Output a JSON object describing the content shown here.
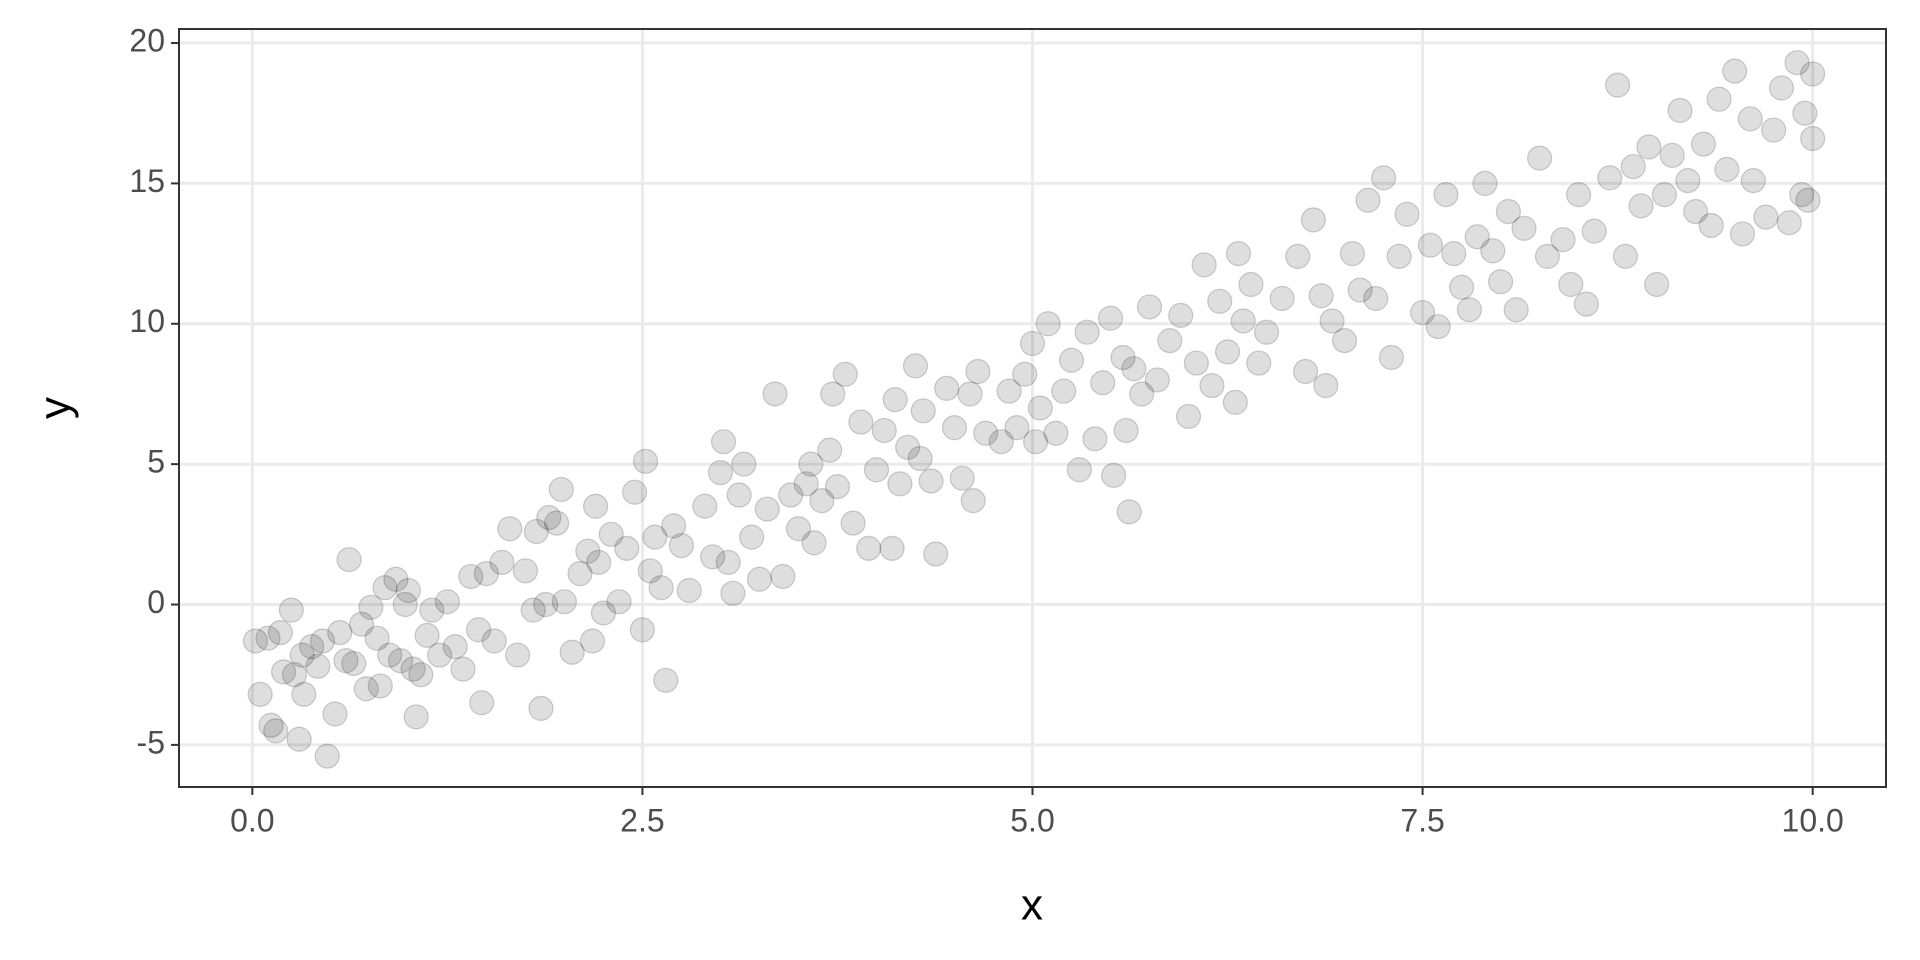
{
  "chart_data": {
    "type": "scatter",
    "x_label": "x",
    "y_label": "y",
    "color": "#000000",
    "alpha": 0.13,
    "grid": true,
    "xlim": [
      -0.47,
      10.47
    ],
    "ylim": [
      -6.5,
      20.5
    ],
    "xticks": [
      {
        "value": 0,
        "label": "0.0"
      },
      2.5,
      {
        "value": 5,
        "label": "5.0"
      },
      7.5,
      {
        "value": 10,
        "label": "10.0"
      }
    ],
    "yticks": [
      -5,
      0,
      5,
      10,
      15,
      20
    ],
    "x": [
      0.02,
      0.05,
      0.1,
      0.12,
      0.15,
      0.18,
      0.2,
      0.25,
      0.27,
      0.3,
      0.32,
      0.33,
      0.38,
      0.42,
      0.45,
      0.48,
      0.53,
      0.56,
      0.6,
      0.62,
      0.65,
      0.7,
      0.73,
      0.76,
      0.8,
      0.82,
      0.85,
      0.88,
      0.92,
      0.95,
      0.98,
      1.0,
      1.03,
      1.05,
      1.08,
      1.12,
      1.15,
      1.2,
      1.25,
      1.3,
      1.35,
      1.4,
      1.45,
      1.47,
      1.5,
      1.55,
      1.6,
      1.65,
      1.7,
      1.75,
      1.8,
      1.82,
      1.85,
      1.88,
      1.9,
      1.95,
      1.98,
      2.0,
      2.05,
      2.1,
      2.15,
      2.18,
      2.2,
      2.22,
      2.25,
      2.3,
      2.35,
      2.4,
      2.45,
      2.5,
      2.52,
      2.55,
      2.58,
      2.62,
      2.65,
      2.7,
      2.75,
      2.8,
      2.9,
      2.95,
      3.0,
      3.02,
      3.05,
      3.08,
      3.12,
      3.15,
      3.2,
      3.25,
      3.3,
      3.35,
      3.4,
      3.45,
      3.5,
      3.55,
      3.58,
      3.6,
      3.65,
      3.7,
      3.72,
      3.75,
      3.8,
      3.85,
      3.9,
      3.95,
      4.0,
      4.05,
      4.1,
      4.12,
      4.15,
      4.2,
      4.25,
      4.28,
      4.3,
      4.35,
      4.38,
      4.45,
      4.5,
      4.55,
      4.6,
      4.62,
      4.65,
      4.7,
      4.8,
      4.85,
      4.9,
      4.95,
      5.0,
      5.02,
      5.05,
      5.1,
      5.15,
      5.2,
      5.25,
      5.3,
      5.35,
      5.4,
      5.45,
      5.5,
      5.52,
      5.58,
      5.6,
      5.62,
      5.65,
      5.7,
      5.75,
      5.8,
      5.88,
      5.95,
      6.0,
      6.05,
      6.1,
      6.15,
      6.2,
      6.25,
      6.3,
      6.32,
      6.35,
      6.4,
      6.45,
      6.5,
      6.6,
      6.7,
      6.75,
      6.8,
      6.85,
      6.88,
      6.92,
      7.0,
      7.05,
      7.1,
      7.15,
      7.2,
      7.25,
      7.3,
      7.35,
      7.4,
      7.5,
      7.55,
      7.6,
      7.65,
      7.7,
      7.75,
      7.8,
      7.85,
      7.9,
      7.95,
      8.0,
      8.05,
      8.1,
      8.15,
      8.25,
      8.3,
      8.4,
      8.45,
      8.5,
      8.55,
      8.6,
      8.7,
      8.75,
      8.8,
      8.85,
      8.9,
      8.95,
      9.0,
      9.05,
      9.1,
      9.15,
      9.2,
      9.25,
      9.3,
      9.35,
      9.4,
      9.45,
      9.5,
      9.55,
      9.6,
      9.62,
      9.7,
      9.75,
      9.8,
      9.85,
      9.9,
      9.93,
      9.95,
      9.97,
      10.0,
      10.0
    ],
    "y": [
      -1.3,
      -3.2,
      -1.2,
      -4.3,
      -4.5,
      -1.0,
      -2.4,
      -0.2,
      -2.5,
      -4.8,
      -1.8,
      -3.2,
      -1.5,
      -2.2,
      -1.3,
      -5.4,
      -3.9,
      -1.0,
      -2.0,
      1.6,
      -2.1,
      -0.7,
      -3.0,
      -0.1,
      -1.2,
      -2.9,
      0.6,
      -1.8,
      0.9,
      -2.0,
      0.0,
      0.5,
      -2.3,
      -4.0,
      -2.5,
      -1.1,
      -0.2,
      -1.8,
      0.1,
      -1.5,
      -2.3,
      1.0,
      -0.9,
      -3.5,
      1.1,
      -1.3,
      1.5,
      2.7,
      -1.8,
      1.2,
      -0.2,
      2.6,
      -3.7,
      0.0,
      3.1,
      2.9,
      4.1,
      0.1,
      -1.7,
      1.1,
      1.9,
      -1.3,
      3.5,
      1.5,
      -0.3,
      2.5,
      0.1,
      2.0,
      4.0,
      -0.9,
      5.1,
      1.2,
      2.4,
      0.6,
      -2.7,
      2.8,
      2.1,
      0.5,
      3.5,
      1.7,
      4.7,
      5.8,
      1.5,
      0.4,
      3.9,
      5.0,
      2.4,
      0.9,
      3.4,
      7.5,
      1.0,
      3.9,
      2.7,
      4.3,
      5.0,
      2.2,
      3.7,
      5.5,
      7.5,
      4.2,
      8.2,
      2.9,
      6.5,
      2.0,
      4.8,
      6.2,
      2.0,
      7.3,
      4.3,
      5.6,
      8.5,
      5.2,
      6.9,
      4.4,
      1.8,
      7.7,
      6.3,
      4.5,
      7.5,
      3.7,
      8.3,
      6.1,
      5.8,
      7.6,
      6.3,
      8.2,
      9.3,
      5.8,
      7.0,
      10.0,
      6.1,
      7.6,
      8.7,
      4.8,
      9.7,
      5.9,
      7.9,
      10.2,
      4.6,
      8.8,
      6.2,
      3.3,
      8.4,
      7.5,
      10.6,
      8.0,
      9.4,
      10.3,
      6.7,
      8.6,
      12.1,
      7.8,
      10.8,
      9.0,
      7.2,
      12.5,
      10.1,
      11.4,
      8.6,
      9.7,
      10.9,
      12.4,
      8.3,
      13.7,
      11.0,
      7.8,
      10.1,
      9.4,
      12.5,
      11.2,
      14.4,
      10.9,
      15.2,
      8.8,
      12.4,
      13.9,
      10.4,
      12.8,
      9.9,
      14.6,
      12.5,
      11.3,
      10.5,
      13.1,
      15.0,
      12.6,
      11.5,
      14.0,
      10.5,
      13.4,
      15.9,
      12.4,
      13.0,
      11.4,
      14.6,
      10.7,
      13.3,
      15.2,
      18.5,
      12.4,
      15.6,
      14.2,
      16.3,
      11.4,
      14.6,
      16.0,
      17.6,
      15.1,
      14.0,
      16.4,
      13.5,
      18.0,
      15.5,
      19.0,
      13.2,
      17.3,
      15.1,
      13.8,
      16.9,
      18.4,
      13.6,
      19.3,
      14.6,
      17.5,
      14.4,
      16.6,
      18.9
    ]
  }
}
